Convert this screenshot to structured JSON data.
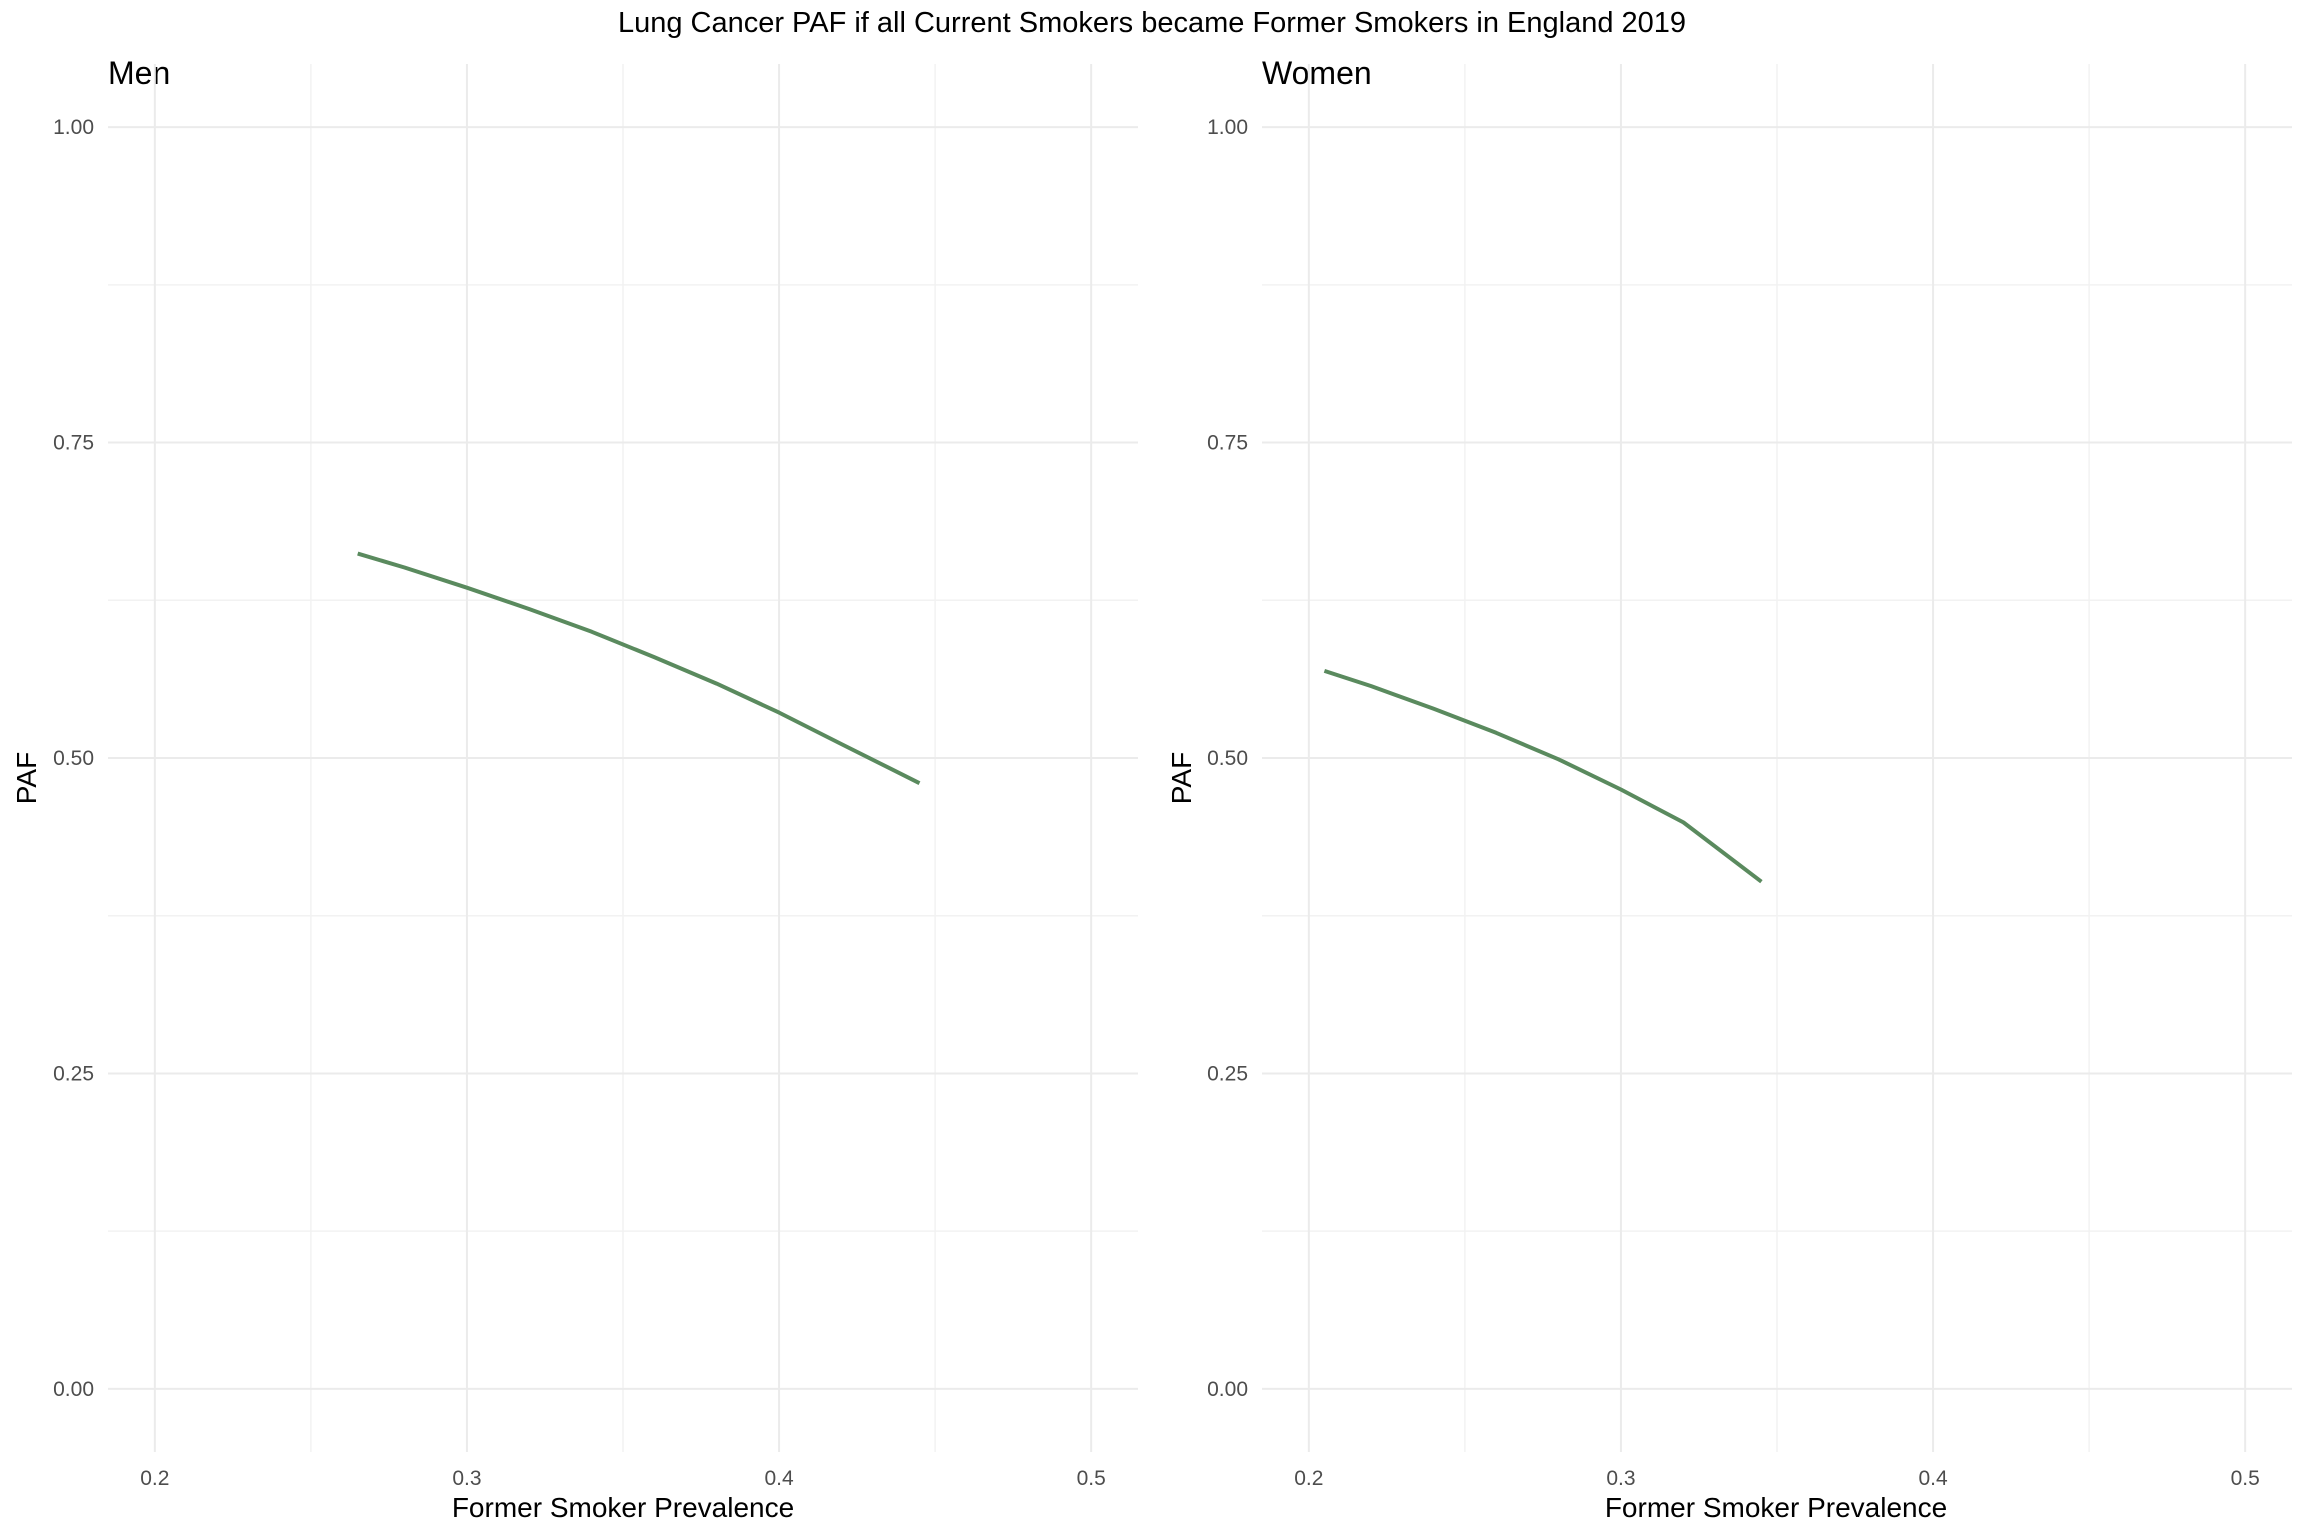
{
  "chart_data": {
    "type": "line",
    "title": "Lung Cancer PAF if all Current Smokers became Former Smokers in England 2019",
    "line_color": "#5A8A5E",
    "grid": true,
    "legend": "none",
    "panels": [
      {
        "title": "Men",
        "xlabel": "Former Smoker Prevalence",
        "ylabel": "PAF",
        "xlim": [
          0.185,
          0.515
        ],
        "ylim": [
          -0.05,
          1.05
        ],
        "x_ticks": [
          0.2,
          0.3,
          0.4,
          0.5
        ],
        "x_tick_labels": [
          "0.2",
          "0.3",
          "0.4",
          "0.5"
        ],
        "y_ticks": [
          0.0,
          0.25,
          0.5,
          0.75,
          1.0
        ],
        "y_tick_labels": [
          "0.00",
          "0.25",
          "0.50",
          "0.75",
          "1.00"
        ],
        "series": [
          {
            "x": [
              0.265,
              0.28,
              0.3,
              0.32,
              0.34,
              0.36,
              0.38,
              0.4,
              0.42,
              0.445
            ],
            "y": [
              0.662,
              0.651,
              0.635,
              0.618,
              0.6,
              0.58,
              0.559,
              0.536,
              0.511,
              0.48
            ]
          }
        ]
      },
      {
        "title": "Women",
        "xlabel": "Former Smoker Prevalence",
        "ylabel": "PAF",
        "xlim": [
          0.185,
          0.515
        ],
        "ylim": [
          -0.05,
          1.05
        ],
        "x_ticks": [
          0.2,
          0.3,
          0.4,
          0.5
        ],
        "x_tick_labels": [
          "0.2",
          "0.3",
          "0.4",
          "0.5"
        ],
        "y_ticks": [
          0.0,
          0.25,
          0.5,
          0.75,
          1.0
        ],
        "y_tick_labels": [
          "0.00",
          "0.25",
          "0.50",
          "0.75",
          "1.00"
        ],
        "series": [
          {
            "x": [
              0.205,
              0.22,
              0.24,
              0.26,
              0.28,
              0.3,
              0.32,
              0.345
            ],
            "y": [
              0.569,
              0.557,
              0.539,
              0.52,
              0.499,
              0.475,
              0.449,
              0.402
            ]
          }
        ]
      }
    ]
  }
}
